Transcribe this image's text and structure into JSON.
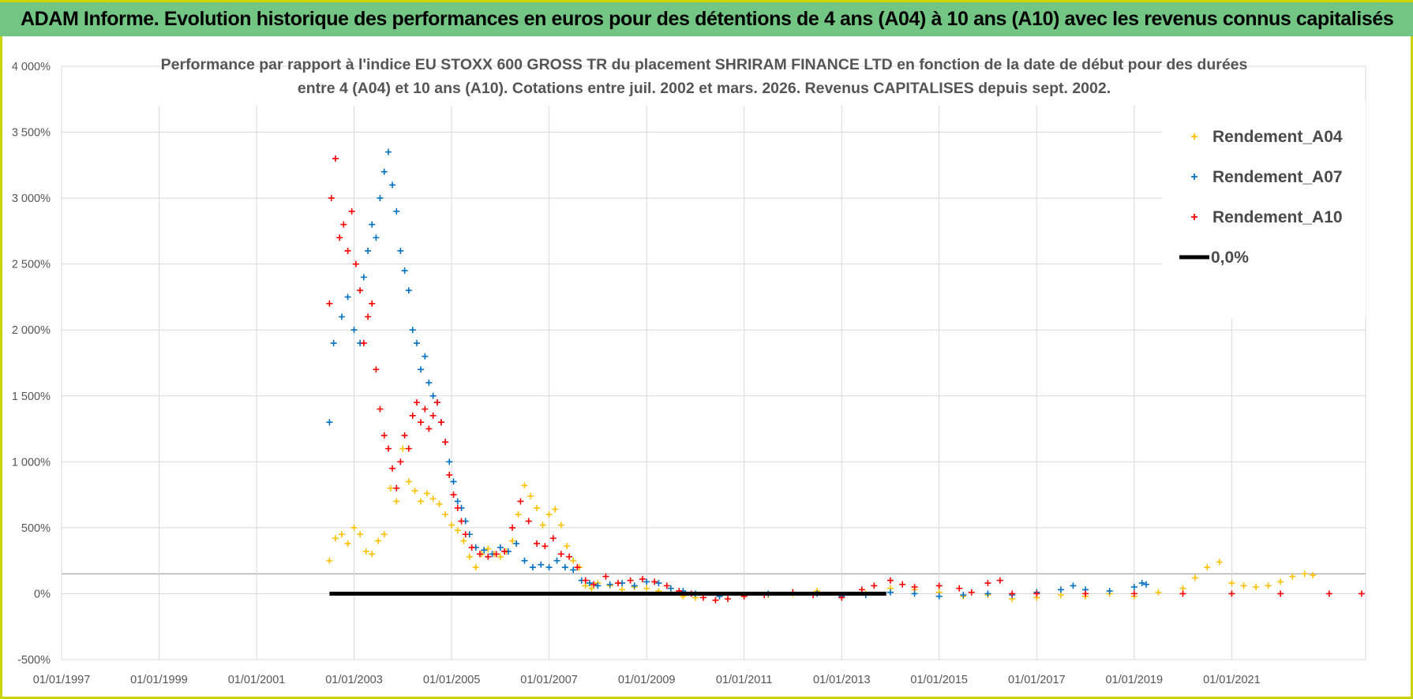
{
  "header": {
    "title": "ADAM Informe. Evolution historique des performances en euros pour des détentions de 4 ans (A04) à 10 ans (A10) avec les revenus connus capitalisés"
  },
  "chart_data": {
    "type": "scatter",
    "title_lines": [
      "Performance par rapport à l'indice EU STOXX 600 GROSS TR  du placement SHRIRAM FINANCE LTD en fonction de la date de début pour des durées",
      "entre 4 (A04) et 10 ans (A10).  Cotations entre juil. 2002 et mars. 2026. Revenus CAPITALISES depuis sept. 2002."
    ],
    "xlabel": "",
    "ylabel": "",
    "x_range": [
      "1997-01-01",
      "2023-10-01"
    ],
    "ylim": [
      -500,
      4000
    ],
    "x_ticks": [
      "01/01/1997",
      "01/01/1999",
      "01/01/2001",
      "01/01/2003",
      "01/01/2005",
      "01/01/2007",
      "01/01/2009",
      "01/01/2011",
      "01/01/2013",
      "01/01/2015",
      "01/01/2017",
      "01/01/2019",
      "01/01/2021"
    ],
    "y_ticks": [
      "4 000%",
      "3 500%",
      "3 000%",
      "2 500%",
      "2 000%",
      "1 500%",
      "1 000%",
      "500%",
      "0%",
      "-500%"
    ],
    "y_tick_values": [
      4000,
      3500,
      3000,
      2500,
      2000,
      1500,
      1000,
      500,
      0,
      -500
    ],
    "grid": true,
    "legend_position": "top-right",
    "series": [
      {
        "name": "Rendement_A04",
        "color": "#ffc000",
        "marker": "plus",
        "points": [
          [
            "2002-07-01",
            250
          ],
          [
            "2002-08-15",
            420
          ],
          [
            "2002-10-01",
            450
          ],
          [
            "2002-11-15",
            380
          ],
          [
            "2003-01-01",
            500
          ],
          [
            "2003-02-15",
            450
          ],
          [
            "2003-04-01",
            320
          ],
          [
            "2003-05-15",
            300
          ],
          [
            "2003-07-01",
            400
          ],
          [
            "2003-08-15",
            450
          ],
          [
            "2003-10-01",
            800
          ],
          [
            "2003-11-15",
            700
          ],
          [
            "2004-01-01",
            1100
          ],
          [
            "2004-02-15",
            850
          ],
          [
            "2004-04-01",
            780
          ],
          [
            "2004-05-15",
            700
          ],
          [
            "2004-07-01",
            760
          ],
          [
            "2004-08-15",
            720
          ],
          [
            "2004-10-01",
            680
          ],
          [
            "2004-11-15",
            600
          ],
          [
            "2005-01-01",
            520
          ],
          [
            "2005-02-15",
            480
          ],
          [
            "2005-04-01",
            400
          ],
          [
            "2005-05-15",
            280
          ],
          [
            "2005-07-01",
            200
          ],
          [
            "2005-08-15",
            300
          ],
          [
            "2005-10-01",
            340
          ],
          [
            "2005-11-15",
            300
          ],
          [
            "2006-01-01",
            280
          ],
          [
            "2006-02-15",
            320
          ],
          [
            "2006-04-01",
            400
          ],
          [
            "2006-05-15",
            600
          ],
          [
            "2006-07-01",
            820
          ],
          [
            "2006-08-15",
            740
          ],
          [
            "2006-10-01",
            650
          ],
          [
            "2006-11-15",
            520
          ],
          [
            "2007-01-01",
            600
          ],
          [
            "2007-02-15",
            640
          ],
          [
            "2007-04-01",
            520
          ],
          [
            "2007-05-15",
            360
          ],
          [
            "2007-07-01",
            250
          ],
          [
            "2007-08-15",
            200
          ],
          [
            "2007-10-01",
            60
          ],
          [
            "2007-11-15",
            40
          ],
          [
            "2008-01-01",
            80
          ],
          [
            "2008-04-01",
            60
          ],
          [
            "2008-07-01",
            30
          ],
          [
            "2008-10-01",
            50
          ],
          [
            "2009-01-01",
            40
          ],
          [
            "2009-04-01",
            20
          ],
          [
            "2009-07-01",
            10
          ],
          [
            "2009-10-01",
            -20
          ],
          [
            "2010-01-01",
            -30
          ],
          [
            "2010-07-01",
            -20
          ],
          [
            "2011-01-01",
            -20
          ],
          [
            "2011-07-01",
            -10
          ],
          [
            "2012-01-01",
            0
          ],
          [
            "2012-07-01",
            20
          ],
          [
            "2013-01-01",
            -10
          ],
          [
            "2013-07-01",
            0
          ],
          [
            "2014-01-01",
            40
          ],
          [
            "2014-07-01",
            30
          ],
          [
            "2015-01-01",
            10
          ],
          [
            "2015-07-01",
            -20
          ],
          [
            "2016-01-01",
            -10
          ],
          [
            "2016-07-01",
            -40
          ],
          [
            "2017-01-01",
            -30
          ],
          [
            "2017-07-01",
            -10
          ],
          [
            "2018-01-01",
            -20
          ],
          [
            "2018-07-01",
            0
          ],
          [
            "2019-01-01",
            -20
          ],
          [
            "2019-07-01",
            10
          ],
          [
            "2020-01-01",
            40
          ],
          [
            "2020-04-01",
            120
          ],
          [
            "2020-07-01",
            200
          ],
          [
            "2020-10-01",
            240
          ],
          [
            "2021-01-01",
            80
          ],
          [
            "2021-04-01",
            60
          ],
          [
            "2021-07-01",
            50
          ],
          [
            "2021-10-01",
            60
          ],
          [
            "2022-01-01",
            90
          ],
          [
            "2022-04-01",
            130
          ],
          [
            "2022-07-01",
            150
          ],
          [
            "2022-09-01",
            140
          ]
        ]
      },
      {
        "name": "Rendement_A07",
        "color": "#0070c0",
        "marker": "plus",
        "points": [
          [
            "2002-07-01",
            1300
          ],
          [
            "2002-08-01",
            1900
          ],
          [
            "2002-10-01",
            2100
          ],
          [
            "2002-11-15",
            2250
          ],
          [
            "2003-01-01",
            2000
          ],
          [
            "2003-02-15",
            1900
          ],
          [
            "2003-03-15",
            2400
          ],
          [
            "2003-04-15",
            2600
          ],
          [
            "2003-05-15",
            2800
          ],
          [
            "2003-06-15",
            2700
          ],
          [
            "2003-07-15",
            3000
          ],
          [
            "2003-08-15",
            3200
          ],
          [
            "2003-09-15",
            3350
          ],
          [
            "2003-10-15",
            3100
          ],
          [
            "2003-11-15",
            2900
          ],
          [
            "2003-12-15",
            2600
          ],
          [
            "2004-01-15",
            2450
          ],
          [
            "2004-02-15",
            2300
          ],
          [
            "2004-03-15",
            2000
          ],
          [
            "2004-04-15",
            1900
          ],
          [
            "2004-05-15",
            1700
          ],
          [
            "2004-06-15",
            1800
          ],
          [
            "2004-07-15",
            1600
          ],
          [
            "2004-08-15",
            1500
          ],
          [
            "2004-09-15",
            1450
          ],
          [
            "2004-10-15",
            1300
          ],
          [
            "2004-11-15",
            1150
          ],
          [
            "2004-12-15",
            1000
          ],
          [
            "2005-01-15",
            850
          ],
          [
            "2005-02-15",
            700
          ],
          [
            "2005-03-15",
            650
          ],
          [
            "2005-04-15",
            550
          ],
          [
            "2005-05-15",
            450
          ],
          [
            "2005-07-01",
            350
          ],
          [
            "2005-09-01",
            330
          ],
          [
            "2005-11-01",
            300
          ],
          [
            "2006-01-01",
            350
          ],
          [
            "2006-03-01",
            320
          ],
          [
            "2006-05-01",
            380
          ],
          [
            "2006-07-01",
            250
          ],
          [
            "2006-09-01",
            200
          ],
          [
            "2006-11-01",
            220
          ],
          [
            "2007-01-01",
            200
          ],
          [
            "2007-03-01",
            250
          ],
          [
            "2007-05-01",
            200
          ],
          [
            "2007-07-01",
            180
          ],
          [
            "2007-09-01",
            100
          ],
          [
            "2007-11-01",
            80
          ],
          [
            "2008-01-01",
            60
          ],
          [
            "2008-04-01",
            70
          ],
          [
            "2008-07-01",
            80
          ],
          [
            "2008-10-01",
            60
          ],
          [
            "2009-01-01",
            90
          ],
          [
            "2009-04-01",
            80
          ],
          [
            "2009-07-01",
            40
          ],
          [
            "2009-10-01",
            20
          ],
          [
            "2010-01-01",
            0
          ],
          [
            "2010-07-01",
            -20
          ],
          [
            "2011-01-01",
            -10
          ],
          [
            "2011-07-01",
            0
          ],
          [
            "2012-01-01",
            10
          ],
          [
            "2012-07-01",
            0
          ],
          [
            "2013-01-01",
            -20
          ],
          [
            "2013-07-01",
            -10
          ],
          [
            "2014-01-01",
            10
          ],
          [
            "2014-07-01",
            0
          ],
          [
            "2015-01-01",
            -20
          ],
          [
            "2015-07-01",
            -10
          ],
          [
            "2016-01-01",
            0
          ],
          [
            "2016-07-01",
            -10
          ],
          [
            "2017-01-01",
            10
          ],
          [
            "2017-07-01",
            30
          ],
          [
            "2017-10-01",
            60
          ],
          [
            "2018-01-01",
            30
          ],
          [
            "2018-07-01",
            20
          ],
          [
            "2019-01-01",
            50
          ],
          [
            "2019-03-01",
            80
          ],
          [
            "2019-04-01",
            70
          ]
        ]
      },
      {
        "name": "Rendement_A10",
        "color": "#ff0000",
        "marker": "plus",
        "points": [
          [
            "2002-07-01",
            2200
          ],
          [
            "2002-07-15",
            3000
          ],
          [
            "2002-08-15",
            3300
          ],
          [
            "2002-09-15",
            2700
          ],
          [
            "2002-10-15",
            2800
          ],
          [
            "2002-11-15",
            2600
          ],
          [
            "2002-12-15",
            2900
          ],
          [
            "2003-01-15",
            2500
          ],
          [
            "2003-02-15",
            2300
          ],
          [
            "2003-03-15",
            1900
          ],
          [
            "2003-04-15",
            2100
          ],
          [
            "2003-05-15",
            2200
          ],
          [
            "2003-06-15",
            1700
          ],
          [
            "2003-07-15",
            1400
          ],
          [
            "2003-08-15",
            1200
          ],
          [
            "2003-09-15",
            1100
          ],
          [
            "2003-10-15",
            950
          ],
          [
            "2003-11-15",
            800
          ],
          [
            "2003-12-15",
            1000
          ],
          [
            "2004-01-15",
            1200
          ],
          [
            "2004-02-15",
            1100
          ],
          [
            "2004-03-15",
            1350
          ],
          [
            "2004-04-15",
            1450
          ],
          [
            "2004-05-15",
            1300
          ],
          [
            "2004-06-15",
            1400
          ],
          [
            "2004-07-15",
            1250
          ],
          [
            "2004-08-15",
            1350
          ],
          [
            "2004-09-15",
            1450
          ],
          [
            "2004-10-15",
            1300
          ],
          [
            "2004-11-15",
            1150
          ],
          [
            "2004-12-15",
            900
          ],
          [
            "2005-01-15",
            750
          ],
          [
            "2005-02-15",
            650
          ],
          [
            "2005-03-15",
            550
          ],
          [
            "2005-04-15",
            450
          ],
          [
            "2005-06-01",
            350
          ],
          [
            "2005-08-01",
            300
          ],
          [
            "2005-10-01",
            280
          ],
          [
            "2005-12-01",
            300
          ],
          [
            "2006-02-01",
            320
          ],
          [
            "2006-04-01",
            500
          ],
          [
            "2006-06-01",
            700
          ],
          [
            "2006-08-01",
            550
          ],
          [
            "2006-10-01",
            380
          ],
          [
            "2006-12-01",
            360
          ],
          [
            "2007-02-01",
            420
          ],
          [
            "2007-04-01",
            300
          ],
          [
            "2007-06-01",
            280
          ],
          [
            "2007-08-01",
            200
          ],
          [
            "2007-10-01",
            100
          ],
          [
            "2007-12-01",
            70
          ],
          [
            "2008-03-01",
            130
          ],
          [
            "2008-06-01",
            80
          ],
          [
            "2008-09-01",
            100
          ],
          [
            "2008-12-01",
            110
          ],
          [
            "2009-03-01",
            90
          ],
          [
            "2009-06-01",
            60
          ],
          [
            "2009-09-01",
            20
          ],
          [
            "2009-12-01",
            0
          ],
          [
            "2010-03-01",
            -30
          ],
          [
            "2010-06-01",
            -50
          ],
          [
            "2010-09-01",
            -40
          ],
          [
            "2011-01-01",
            -20
          ],
          [
            "2011-06-01",
            -10
          ],
          [
            "2012-01-01",
            10
          ],
          [
            "2012-06-01",
            -10
          ],
          [
            "2013-01-01",
            -30
          ],
          [
            "2013-06-01",
            30
          ],
          [
            "2013-09-01",
            60
          ],
          [
            "2014-01-01",
            100
          ],
          [
            "2014-04-01",
            70
          ],
          [
            "2014-07-01",
            50
          ],
          [
            "2015-01-01",
            60
          ],
          [
            "2015-06-01",
            40
          ],
          [
            "2015-09-01",
            10
          ],
          [
            "2016-01-01",
            80
          ],
          [
            "2016-04-01",
            100
          ],
          [
            "2016-07-01",
            0
          ],
          [
            "2017-01-01",
            0
          ],
          [
            "2018-01-01",
            0
          ],
          [
            "2019-01-01",
            0
          ],
          [
            "2020-01-01",
            0
          ],
          [
            "2021-01-01",
            0
          ],
          [
            "2022-01-01",
            0
          ],
          [
            "2023-01-01",
            0
          ],
          [
            "2023-09-01",
            0
          ]
        ]
      },
      {
        "name": "0,0%",
        "color": "#000000",
        "type": "line",
        "points": [
          [
            "2002-07-01",
            0
          ],
          [
            "2013-12-01",
            0
          ]
        ]
      }
    ]
  }
}
